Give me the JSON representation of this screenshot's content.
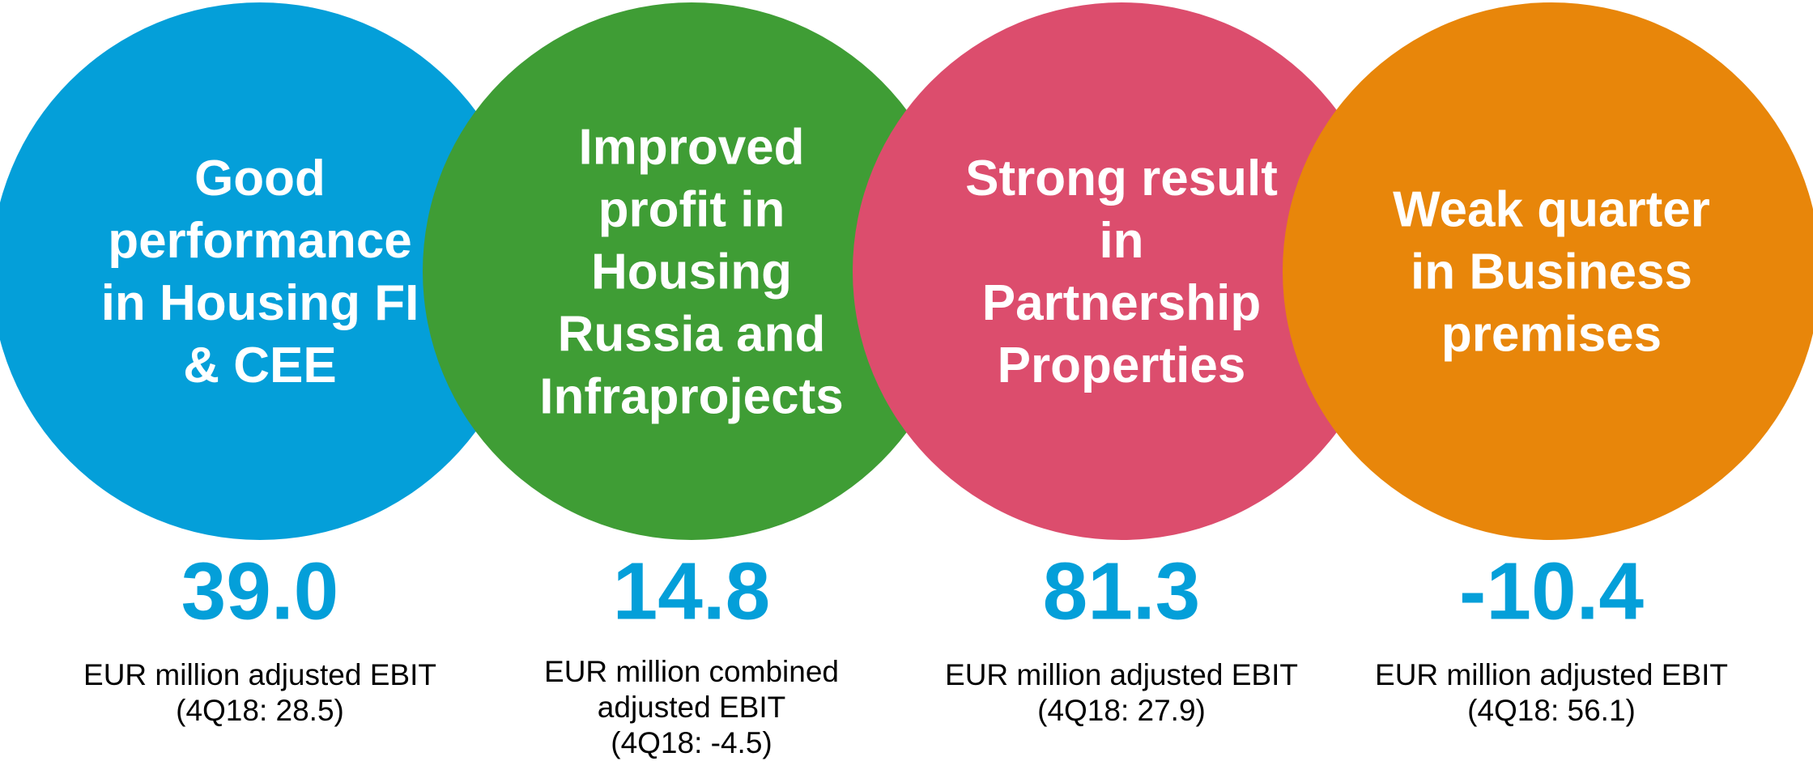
{
  "items": [
    {
      "heading": [
        "Good",
        "performance",
        "in Housing FI",
        "& CEE"
      ],
      "value": "39.0",
      "caption": [
        "EUR million adjusted EBIT",
        "(4Q18: 28.5)"
      ]
    },
    {
      "heading": [
        "Improved",
        "profit in",
        "Housing",
        "Russia and",
        "Infraprojects"
      ],
      "value": "14.8",
      "caption": [
        "EUR million combined",
        "adjusted EBIT",
        "(4Q18: -4.5)"
      ]
    },
    {
      "heading": [
        "Strong result",
        "in",
        "Partnership",
        "Properties"
      ],
      "value": "81.3",
      "caption": [
        "EUR million adjusted EBIT",
        "(4Q18: 27.9)"
      ]
    },
    {
      "heading": [
        "Weak quarter",
        "in Business",
        "premises"
      ],
      "value": "-10.4",
      "caption": [
        "EUR million adjusted EBIT",
        "(4Q18: 56.1)"
      ]
    }
  ]
}
